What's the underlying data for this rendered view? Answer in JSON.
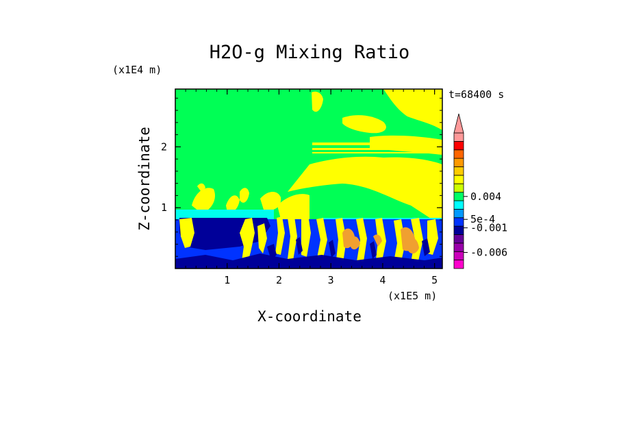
{
  "chart_data": {
    "type": "heatmap",
    "title": "H2O-g Mixing Ratio",
    "xlabel": "X-coordinate",
    "ylabel": "Z-coordinate",
    "x_unit": "(x1E5 m)",
    "y_unit": "(x1E4 m)",
    "time_label": "t=68400 s",
    "xlim": [
      0,
      5.15
    ],
    "ylim": [
      0,
      2.95
    ],
    "x_ticks": [
      "1",
      "2",
      "3",
      "4",
      "5"
    ],
    "x_tick_values": [
      1,
      2,
      3,
      4,
      5
    ],
    "y_ticks": [
      "1",
      "2"
    ],
    "y_tick_values": [
      1,
      2
    ],
    "colorbar": {
      "labels": [
        "0.004",
        "5e-4",
        "-0.001",
        "-0.006"
      ],
      "label_levels": [
        8.5,
        5.8,
        4.8,
        1.9
      ],
      "colors": [
        "#ff00cc",
        "#cc00bb",
        "#9900aa",
        "#660099",
        "#000099",
        "#0033ff",
        "#0099ff",
        "#00ffff",
        "#00ff66",
        "#ccff00",
        "#ffff00",
        "#ffcc00",
        "#ff9900",
        "#ff6600",
        "#ff0000",
        "#ff9999"
      ]
    },
    "dominant_field_colors": {
      "background": "#00ff55",
      "moist": "#ffff00",
      "orange": "#f0a030",
      "cyan": "#00ffee",
      "blue": "#0033ff",
      "navy": "#000099"
    }
  }
}
